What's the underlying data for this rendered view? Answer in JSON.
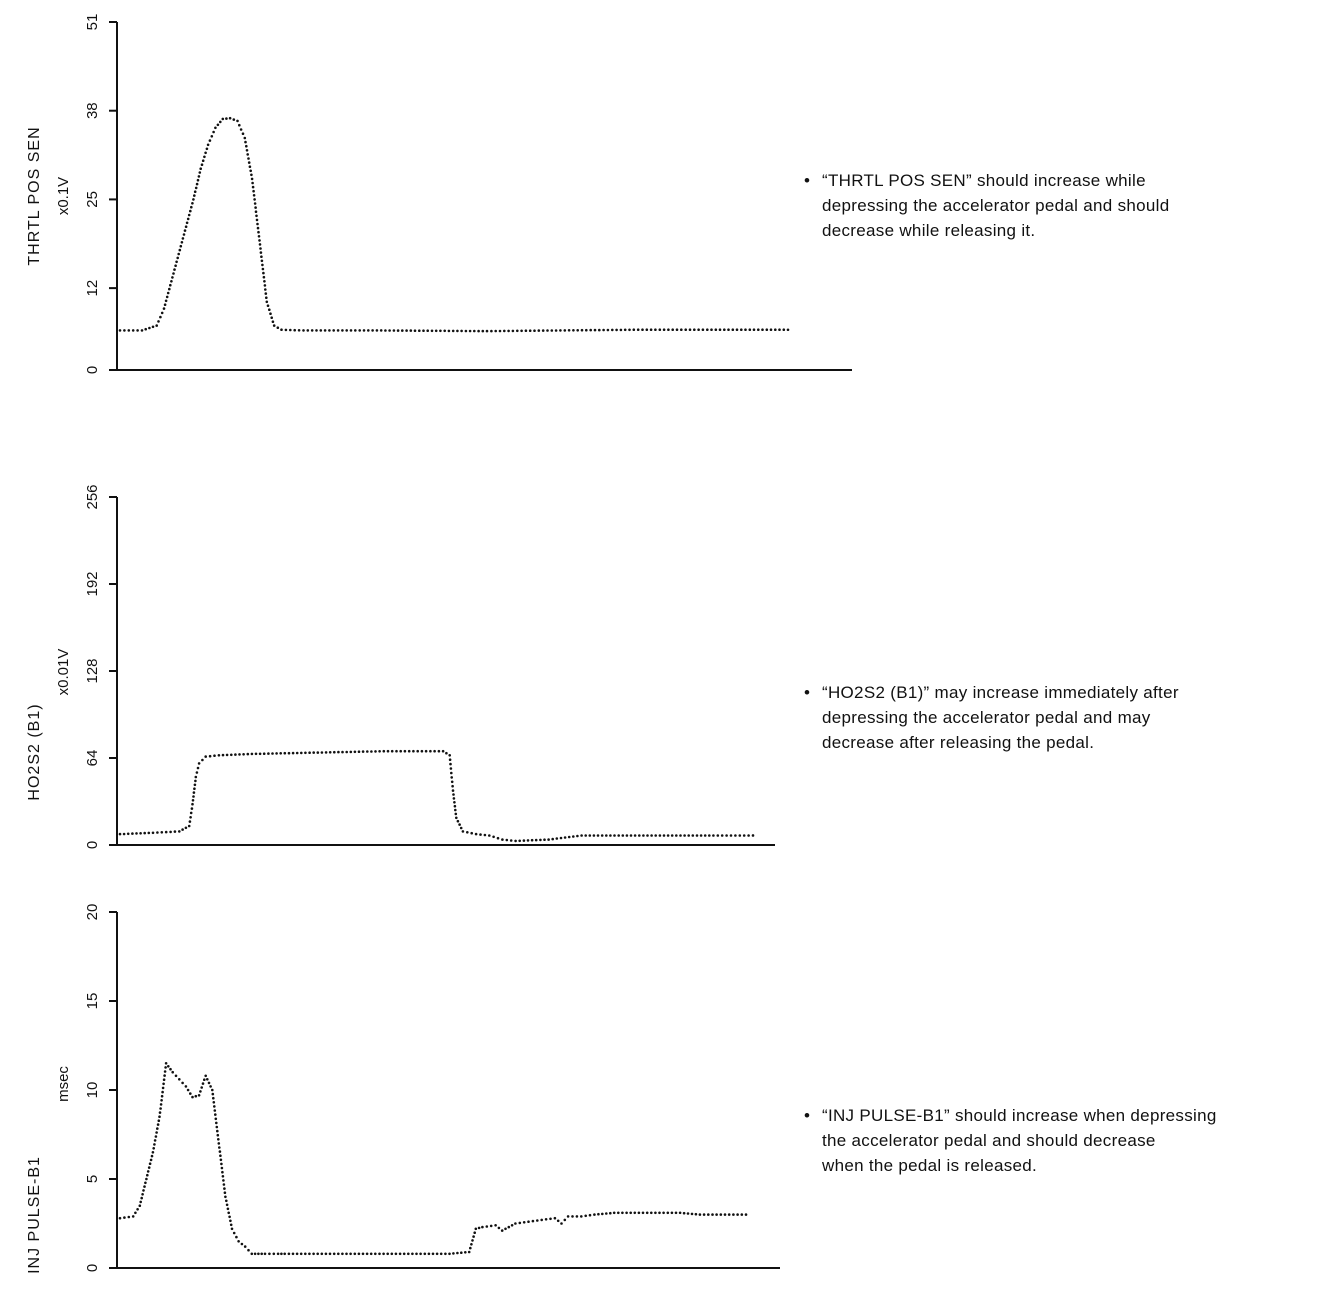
{
  "colors": {
    "ink": "#111111",
    "background": "#ffffff"
  },
  "chart_data": [
    {
      "type": "line",
      "ylabel": "THRTL POS SEN",
      "unit": "x0.1V",
      "ylim": [
        0,
        51
      ],
      "yticks": [
        "0",
        "12",
        "25",
        "38",
        "51"
      ],
      "ytick_values": [
        0,
        12,
        25,
        38,
        51
      ],
      "xlim": [
        0,
        100
      ],
      "line_style": "dotted",
      "series": [
        {
          "x": [
            0,
            3,
            5,
            6,
            7,
            8,
            9,
            10,
            11,
            12,
            13,
            14,
            15,
            16,
            17,
            18,
            19,
            20,
            21,
            22,
            25,
            35,
            50,
            60,
            70,
            80,
            91
          ],
          "values": [
            5.8,
            5.8,
            6.5,
            9,
            13,
            17,
            21,
            25,
            29.5,
            33,
            35.5,
            36.8,
            36.9,
            36.5,
            34,
            28,
            19,
            10,
            6.5,
            5.9,
            5.8,
            5.8,
            5.7,
            5.8,
            5.9,
            5.9,
            5.9
          ]
        }
      ],
      "note": [
        "“THRTL POS SEN” should increase while",
        "depressing the accelerator pedal and should",
        "decrease while releasing it."
      ]
    },
    {
      "type": "line",
      "ylabel": "HO2S2 (B1)",
      "unit": "x0.01V",
      "ylim": [
        0,
        256
      ],
      "yticks": [
        "0",
        "64",
        "128",
        "192",
        "256"
      ],
      "ytick_values": [
        0,
        64,
        128,
        192,
        256
      ],
      "xlim": [
        0,
        100
      ],
      "line_style": "dotted",
      "series": [
        {
          "x": [
            0,
            5,
            9,
            10.5,
            11,
            11.5,
            12,
            13,
            15,
            20,
            30,
            40,
            49,
            50,
            50.5,
            51,
            52,
            54,
            56,
            58,
            60,
            65,
            70,
            80,
            90,
            96
          ],
          "values": [
            8,
            9,
            10,
            14,
            30,
            50,
            60,
            65,
            66,
            67,
            68,
            69,
            69,
            66,
            40,
            20,
            10,
            8,
            7,
            4,
            3,
            4,
            7,
            7,
            7,
            7
          ]
        }
      ],
      "note": [
        "“HO2S2 (B1)” may increase immediately after",
        "depressing the accelerator pedal and may",
        "decrease after releasing the pedal."
      ]
    },
    {
      "type": "line",
      "ylabel": "INJ PULSE-B1",
      "unit": "msec",
      "ylim": [
        0,
        20
      ],
      "yticks": [
        "0",
        "5",
        "10",
        "15",
        "20"
      ],
      "ytick_values": [
        0,
        5,
        10,
        15,
        20
      ],
      "xlim": [
        0,
        100
      ],
      "line_style": "dotted",
      "series": [
        {
          "x": [
            0,
            2,
            3,
            4,
            5,
            6,
            7,
            8,
            9,
            10,
            11,
            12,
            13,
            14,
            15,
            16,
            17,
            18,
            19,
            20,
            21,
            22,
            24,
            25,
            30,
            40,
            50,
            53,
            54,
            55,
            57,
            58,
            60,
            62,
            64,
            66,
            67,
            68,
            70,
            72,
            75,
            80,
            85,
            88,
            95
          ],
          "values": [
            2.8,
            2.9,
            3.5,
            5,
            6.5,
            8.5,
            11.5,
            11,
            10.6,
            10.2,
            9.6,
            9.7,
            10.8,
            10,
            7,
            4,
            2.2,
            1.5,
            1.2,
            0.8,
            0.8,
            0.8,
            0.8,
            0.8,
            0.8,
            0.8,
            0.8,
            0.9,
            2.2,
            2.3,
            2.4,
            2.1,
            2.5,
            2.6,
            2.7,
            2.8,
            2.5,
            2.9,
            2.9,
            3.0,
            3.1,
            3.1,
            3.1,
            3.0,
            3.0
          ]
        }
      ],
      "note": [
        "“INJ PULSE-B1” should increase when depressing",
        "the accelerator pedal and should decrease",
        "when the pedal is released."
      ]
    }
  ],
  "bullet": "•"
}
